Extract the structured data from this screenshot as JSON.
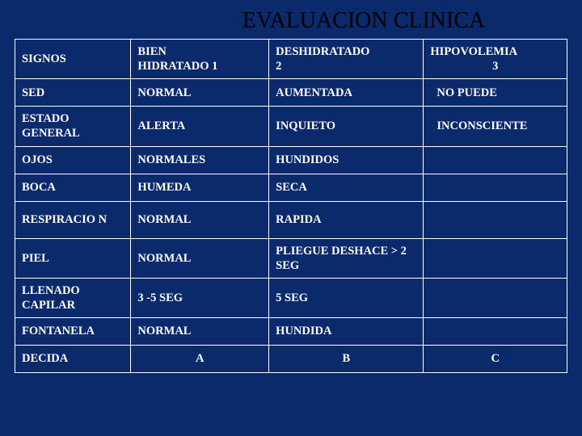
{
  "title": "EVALUACION CLINICA",
  "headers": {
    "signos": "SIGNOS",
    "col1_line1": "BIEN",
    "col1_line2": "HIDRATADO   1",
    "col2_line1": "DESHIDRATADO",
    "col2_line2": "2",
    "col3_line1": "HIPOVOLEMIA",
    "col3_line2": "3"
  },
  "rows": [
    {
      "signo": "SED",
      "c1": "NORMAL",
      "c2": "AUMENTADA",
      "c3": "NO PUEDE"
    },
    {
      "signo": "ESTADO GENERAL",
      "c1": "ALERTA",
      "c2": "INQUIETO",
      "c3": "INCONSCIENTE"
    },
    {
      "signo": "OJOS",
      "c1": "NORMALES",
      "c2": "HUNDIDOS",
      "c3": ""
    },
    {
      "signo": "BOCA",
      "c1": "HUMEDA",
      "c2": "SECA",
      "c3": ""
    },
    {
      "signo": "RESPIRACIO N",
      "c1": "NORMAL",
      "c2": "RAPIDA",
      "c3": ""
    },
    {
      "signo": "PIEL",
      "c1": "NORMAL",
      "c2": "PLIEGUE DESHACE > 2 SEG",
      "c3": ""
    },
    {
      "signo": "LLENADO CAPILAR",
      "c1": "3 -5 SEG",
      "c2": " 5 SEG",
      "c3": ""
    },
    {
      "signo": "FONTANELA",
      "c1": "NORMAL",
      "c2": "HUNDIDA",
      "c3": ""
    },
    {
      "signo": "DECIDA",
      "c1": "A",
      "c2": "B",
      "c3": "C"
    }
  ],
  "styling": {
    "background": "#0b2a6b",
    "border_color": "#ffffff",
    "text_color": "#ffffff",
    "title_color": "#000000",
    "font_family": "Times New Roman",
    "title_fontsize": 28,
    "cell_fontsize": 14.5
  }
}
